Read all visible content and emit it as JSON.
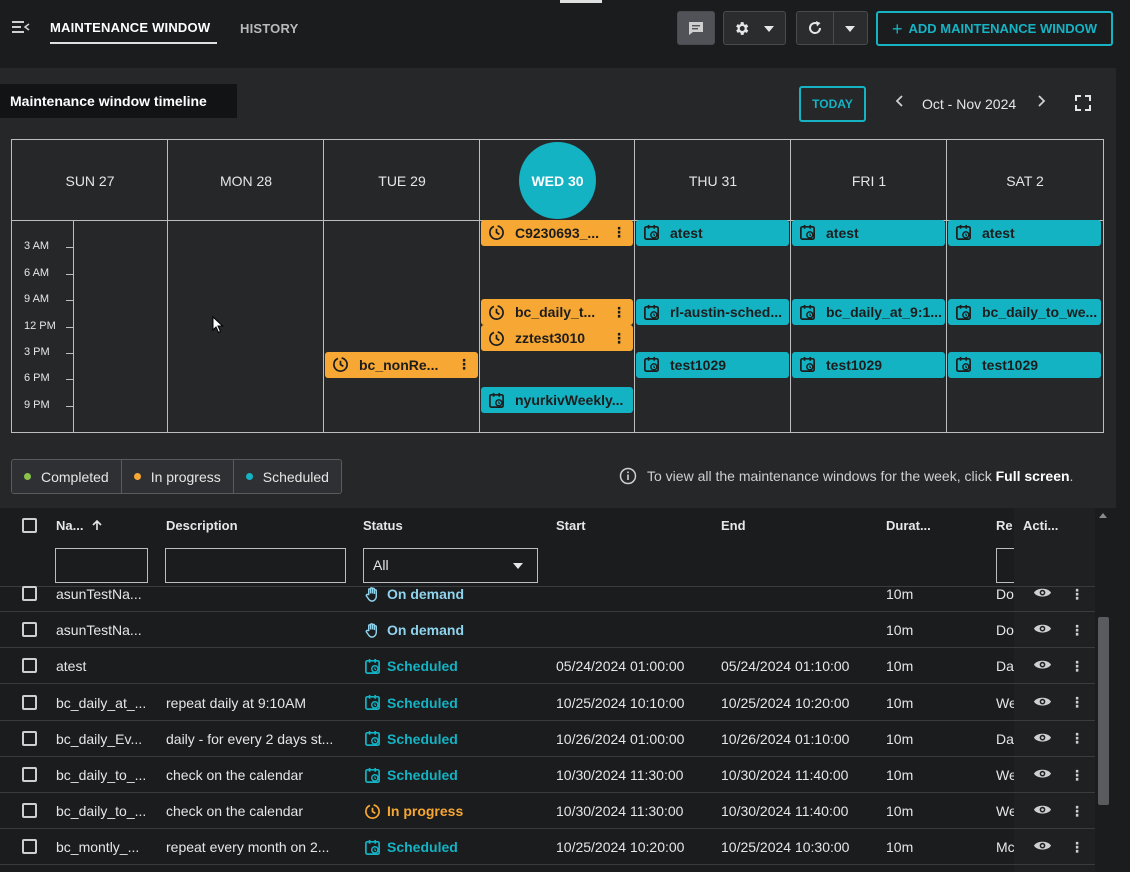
{
  "header": {
    "tabs": [
      {
        "label": "MAINTENANCE WINDOW",
        "active": true
      },
      {
        "label": "HISTORY",
        "active": false
      }
    ],
    "add_button_label": "ADD MAINTENANCE WINDOW",
    "icons": {
      "menu": "menu-collapse-icon",
      "chat": "chat-icon",
      "settings": "gear-icon",
      "refresh": "refresh-icon"
    }
  },
  "timeline": {
    "title": "Maintenance window timeline",
    "today_label": "TODAY",
    "range_label": "Oct - Nov 2024",
    "days": [
      "SUN 27",
      "MON 28",
      "TUE 29",
      "WED 30",
      "THU 31",
      "FRI 1",
      "SAT 2"
    ],
    "today_index": 3,
    "hours": [
      "3 AM",
      "6 AM",
      "9 AM",
      "12 PM",
      "3 PM",
      "6 PM",
      "9 PM"
    ],
    "events": [
      {
        "label": "C9230693_...",
        "day": 3,
        "hour": 1,
        "status": "in-progress"
      },
      {
        "label": "bc_daily_t...",
        "day": 3,
        "hour": 10,
        "status": "in-progress"
      },
      {
        "label": "zztest3010",
        "day": 3,
        "hour": 13,
        "status": "in-progress"
      },
      {
        "label": "nyurkivWeekly...",
        "day": 3,
        "hour": 20,
        "status": "scheduled"
      },
      {
        "label": "bc_nonRe...",
        "day": 2,
        "hour": 16,
        "status": "in-progress"
      },
      {
        "label": "atest",
        "day": 4,
        "hour": 1,
        "status": "scheduled"
      },
      {
        "label": "rl-austin-sched...",
        "day": 4,
        "hour": 10,
        "status": "scheduled"
      },
      {
        "label": "test1029",
        "day": 4,
        "hour": 16,
        "status": "scheduled"
      },
      {
        "label": "atest",
        "day": 5,
        "hour": 1,
        "status": "scheduled"
      },
      {
        "label": "bc_daily_at_9:1...",
        "day": 5,
        "hour": 10,
        "status": "scheduled"
      },
      {
        "label": "test1029",
        "day": 5,
        "hour": 16,
        "status": "scheduled"
      },
      {
        "label": "atest",
        "day": 6,
        "hour": 1,
        "status": "scheduled"
      },
      {
        "label": "bc_daily_to_we...",
        "day": 6,
        "hour": 10,
        "status": "scheduled"
      },
      {
        "label": "test1029",
        "day": 6,
        "hour": 16,
        "status": "scheduled"
      }
    ]
  },
  "legend": {
    "items": [
      {
        "label": "Completed",
        "color": "#8bc34a"
      },
      {
        "label": "In progress",
        "color": "#f7a733"
      },
      {
        "label": "Scheduled",
        "color": "#14b3c4"
      }
    ],
    "info_text": "To view all the maintenance windows for the week, click",
    "info_link": "Full screen",
    "info_end": "."
  },
  "table": {
    "columns": {
      "name": "Na...",
      "description": "Description",
      "status": "Status",
      "start": "Start",
      "end": "End",
      "duration": "Durat...",
      "recurrence": "Re",
      "actions": "Acti..."
    },
    "status_filter_value": "All",
    "rows": [
      {
        "name": "asunTestNa...",
        "description": "",
        "status": "On demand",
        "status_type": "demand",
        "start": "",
        "end": "",
        "duration": "10m",
        "recurrence": "Do"
      },
      {
        "name": "asunTestNa...",
        "description": "",
        "status": "On demand",
        "status_type": "demand",
        "start": "",
        "end": "",
        "duration": "10m",
        "recurrence": "Do"
      },
      {
        "name": "atest",
        "description": "",
        "status": "Scheduled",
        "status_type": "sched",
        "start": "05/24/2024 01:00:00",
        "end": "05/24/2024 01:10:00",
        "duration": "10m",
        "recurrence": "Da"
      },
      {
        "name": "bc_daily_at_...",
        "description": "repeat daily at 9:10AM",
        "status": "Scheduled",
        "status_type": "sched",
        "start": "10/25/2024 10:10:00",
        "end": "10/25/2024 10:20:00",
        "duration": "10m",
        "recurrence": "We"
      },
      {
        "name": "bc_daily_Ev...",
        "description": "daily - for every 2 days st...",
        "status": "Scheduled",
        "status_type": "sched",
        "start": "10/26/2024 01:00:00",
        "end": "10/26/2024 01:10:00",
        "duration": "10m",
        "recurrence": "Da"
      },
      {
        "name": "bc_daily_to_...",
        "description": "check on the calendar",
        "status": "Scheduled",
        "status_type": "sched",
        "start": "10/30/2024 11:30:00",
        "end": "10/30/2024 11:40:00",
        "duration": "10m",
        "recurrence": "We"
      },
      {
        "name": "bc_daily_to_...",
        "description": "check on the calendar",
        "status": "In progress",
        "status_type": "prog",
        "start": "10/30/2024 11:30:00",
        "end": "10/30/2024 11:40:00",
        "duration": "10m",
        "recurrence": "We"
      },
      {
        "name": "bc_montly_...",
        "description": "repeat every month on 2...",
        "status": "Scheduled",
        "status_type": "sched",
        "start": "10/25/2024 10:20:00",
        "end": "10/25/2024 10:30:00",
        "duration": "10m",
        "recurrence": "Mc"
      }
    ]
  }
}
